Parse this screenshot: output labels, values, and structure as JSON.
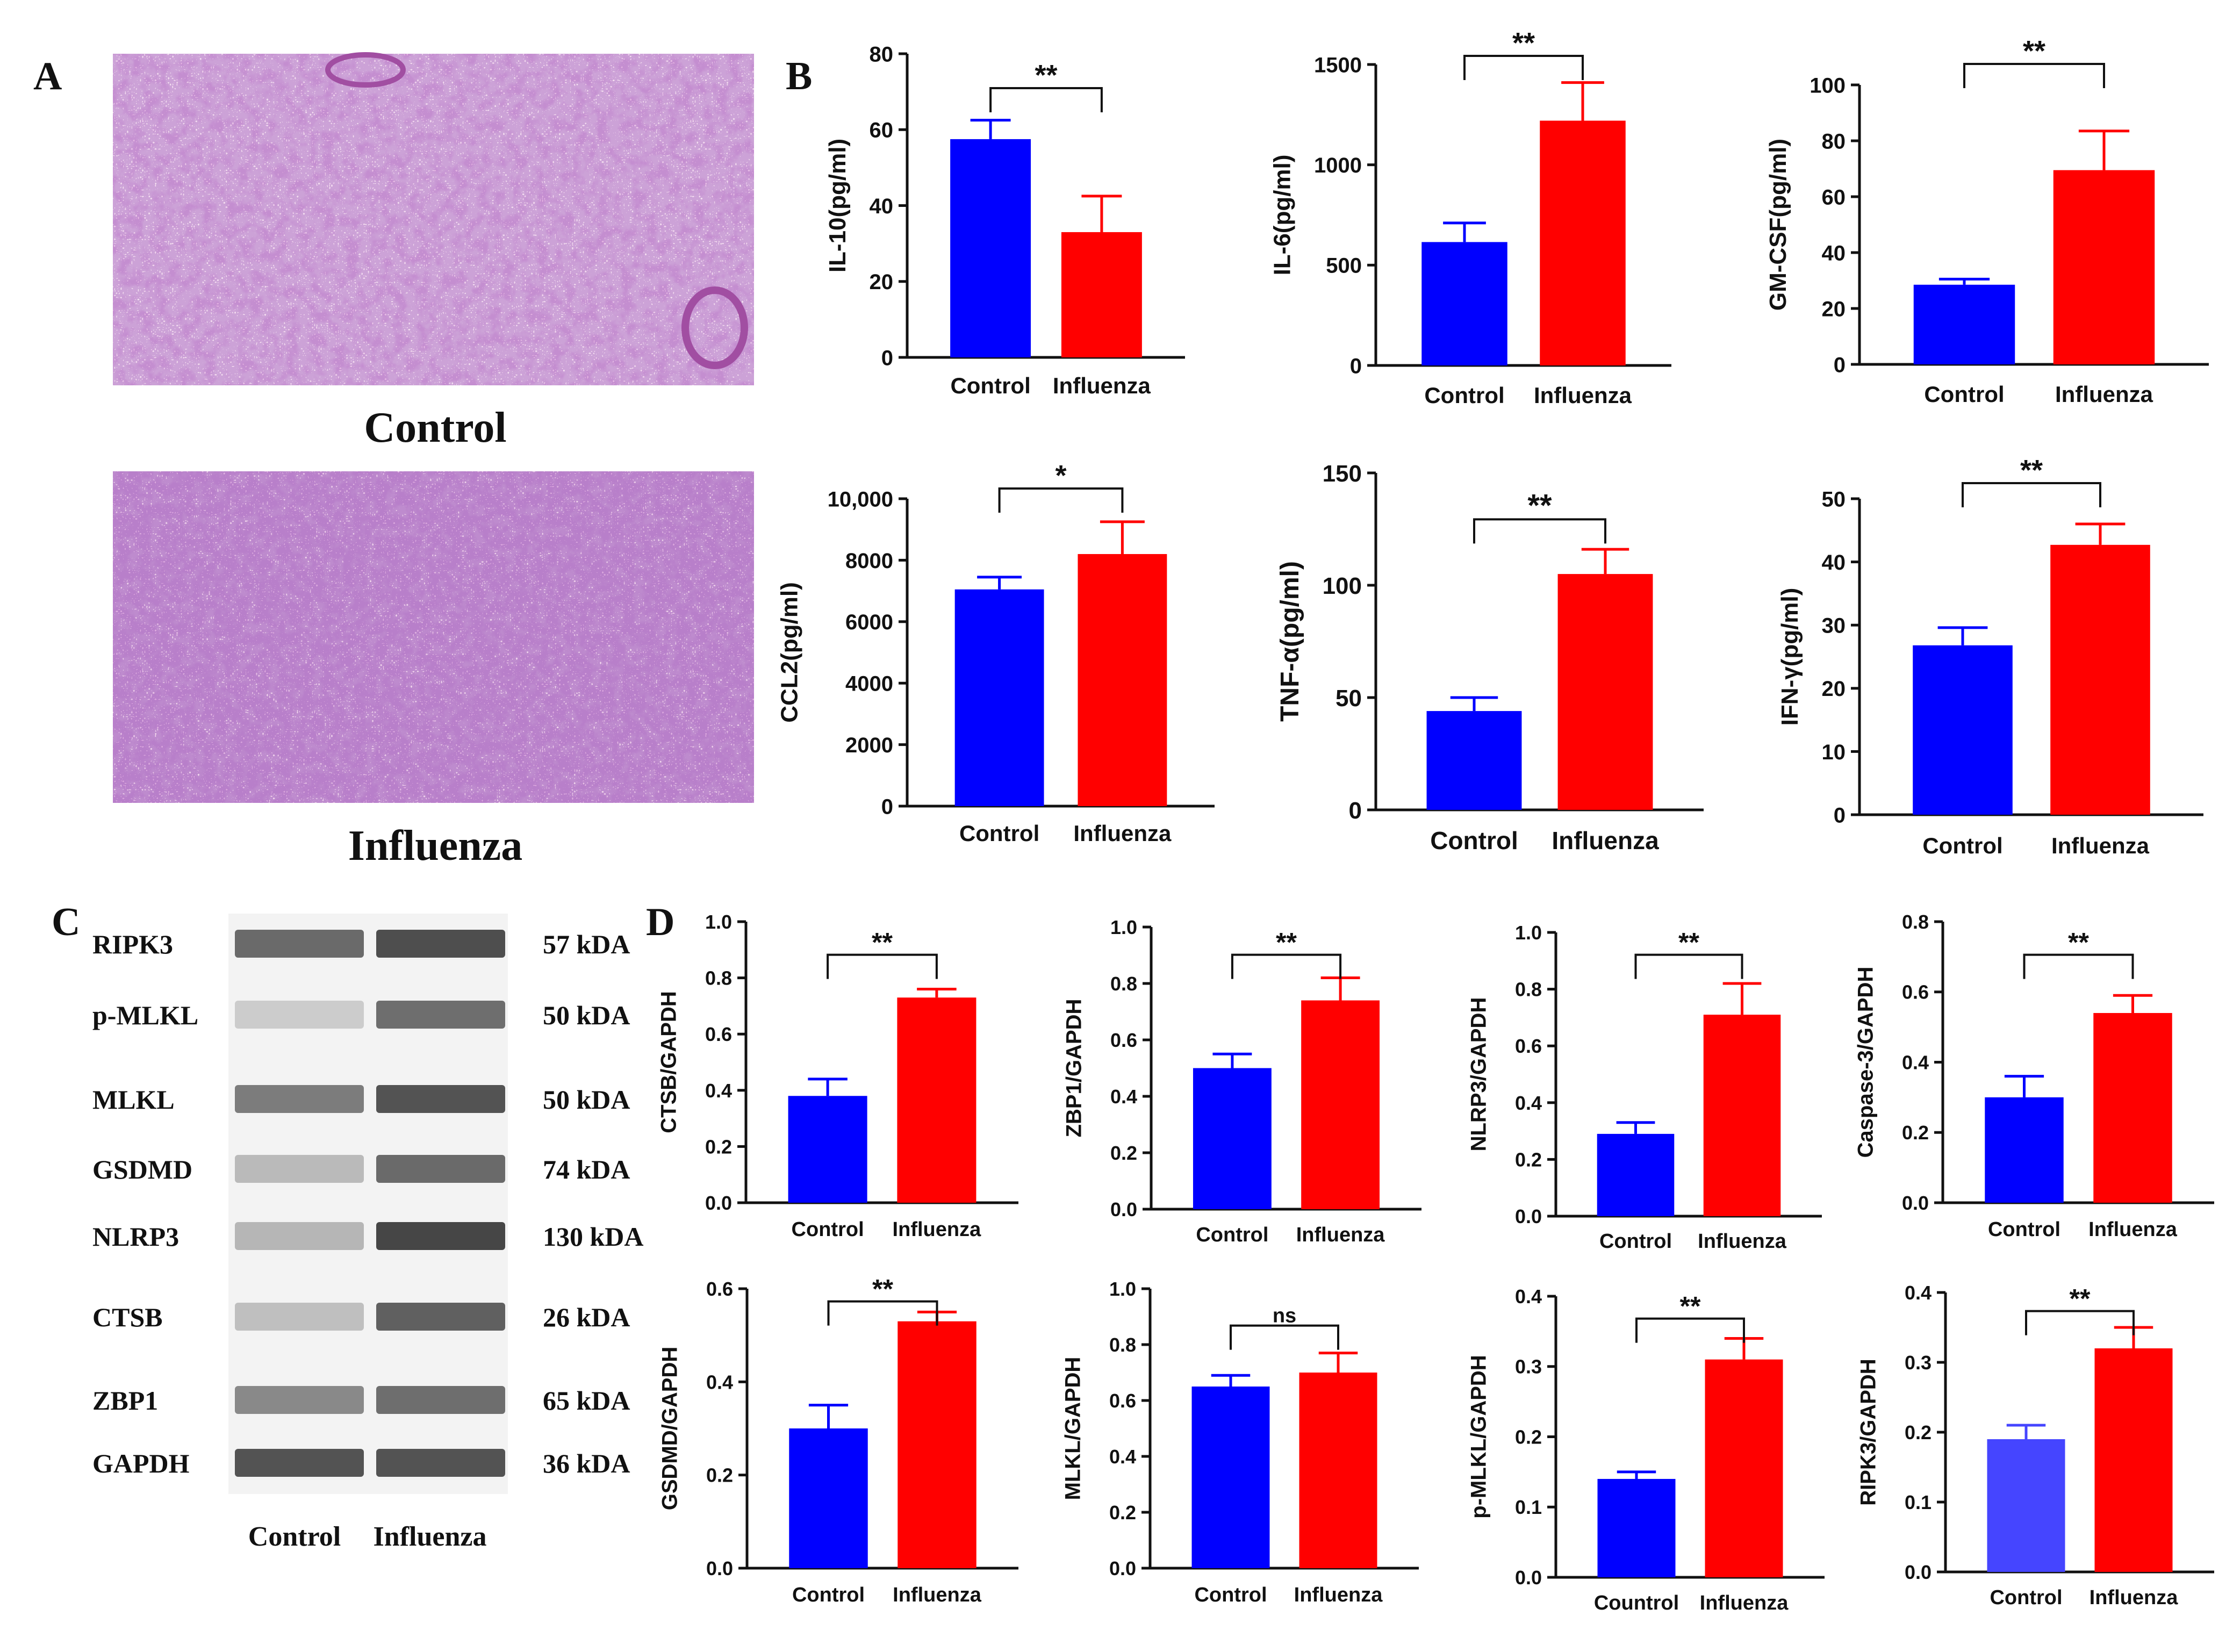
{
  "panels": {
    "a": "A",
    "b": "B",
    "c": "C",
    "d": "D"
  },
  "histology": {
    "control_label": "Control",
    "influenza_label": "Influenza",
    "colors": {
      "background": "#f3dcef",
      "tissue": "#c36fc0",
      "nuclei": "#6a2c8c"
    }
  },
  "blot": {
    "rows": [
      {
        "protein": "RIPK3",
        "size": "57 kDA",
        "control": 0.72,
        "influenza": 0.88
      },
      {
        "protein": "p-MLKL",
        "size": "50 kDA",
        "control": 0.18,
        "influenza": 0.7
      },
      {
        "protein": "MLKL",
        "size": "50 kDA",
        "control": 0.62,
        "influenza": 0.85
      },
      {
        "protein": "GSDMD",
        "size": "74 kDA",
        "control": 0.28,
        "influenza": 0.72
      },
      {
        "protein": "NLRP3",
        "size": "130 kDA",
        "control": 0.3,
        "influenza": 0.92
      },
      {
        "protein": "CTSB",
        "size": "26 kDA",
        "control": 0.25,
        "influenza": 0.78
      },
      {
        "protein": "ZBP1",
        "size": "65 kDA",
        "control": 0.55,
        "influenza": 0.7
      },
      {
        "protein": "GAPDH",
        "size": "36 kDA",
        "control": 0.85,
        "influenza": 0.85
      }
    ],
    "lanes": [
      "Control",
      "Influenza"
    ]
  },
  "colors": {
    "control": "#0000ff",
    "influenza": "#ff0000",
    "ripk3_control": "#4545ff"
  },
  "chart_data": [
    {
      "id": "il10",
      "panel": "B",
      "type": "bar",
      "ylabel": "IL-10(pg/ml)",
      "categories": [
        "Control",
        "Influenza"
      ],
      "values": [
        57.5,
        33
      ],
      "errors": [
        5,
        9.5
      ],
      "ylim": [
        0,
        80
      ],
      "yticks": [
        "0",
        "20",
        "40",
        "60",
        "80"
      ],
      "sig": "**"
    },
    {
      "id": "il6",
      "panel": "B",
      "type": "bar",
      "ylabel": "IL-6(pg/ml)",
      "categories": [
        "Control",
        "Influenza"
      ],
      "values": [
        615,
        1220
      ],
      "errors": [
        95,
        190
      ],
      "ylim": [
        0,
        1500
      ],
      "yticks": [
        "0",
        "500",
        "1000",
        "1500"
      ],
      "sig": "**"
    },
    {
      "id": "gmcsf",
      "panel": "B",
      "type": "bar",
      "ylabel": "GM-CSF(pg/ml)",
      "categories": [
        "Control",
        "Influenza"
      ],
      "values": [
        28.5,
        69.5
      ],
      "errors": [
        2,
        14
      ],
      "ylim": [
        0,
        100
      ],
      "yticks": [
        "0",
        "20",
        "40",
        "60",
        "80",
        "100"
      ],
      "sig": "**"
    },
    {
      "id": "ccl2",
      "panel": "B",
      "type": "bar",
      "ylabel": "CCL2(pg/ml)",
      "categories": [
        "Control",
        "Influenza"
      ],
      "values": [
        7050,
        8200
      ],
      "errors": [
        400,
        1050
      ],
      "ylim": [
        0,
        10000
      ],
      "yticks": [
        "0",
        "2000",
        "4000",
        "6000",
        "8000",
        "10,000"
      ],
      "sig": "*"
    },
    {
      "id": "tnfa",
      "panel": "B",
      "type": "bar",
      "ylabel": "TNF-α(pg/ml)",
      "categories": [
        "Control",
        "Influenza"
      ],
      "values": [
        44,
        105
      ],
      "errors": [
        6,
        11
      ],
      "ylim": [
        0,
        150
      ],
      "yticks": [
        "0",
        "50",
        "100",
        "150"
      ],
      "sig": "**"
    },
    {
      "id": "ifng",
      "panel": "B",
      "type": "bar",
      "ylabel": "IFN-γ(pg/ml)",
      "categories": [
        "Control",
        "Influenza"
      ],
      "values": [
        26.8,
        42.7
      ],
      "errors": [
        2.8,
        3.3
      ],
      "ylim": [
        0,
        50
      ],
      "yticks": [
        "0",
        "10",
        "20",
        "30",
        "40",
        "50"
      ],
      "sig": "**"
    },
    {
      "id": "ctsb",
      "panel": "D",
      "type": "bar",
      "ylabel": "CTSB/GAPDH",
      "categories": [
        "Control",
        "Influenza"
      ],
      "values": [
        0.38,
        0.73
      ],
      "errors": [
        0.06,
        0.03
      ],
      "ylim": [
        0,
        1.0
      ],
      "yticks": [
        "0.0",
        "0.2",
        "0.4",
        "0.6",
        "0.8",
        "1.0"
      ],
      "sig": "**"
    },
    {
      "id": "zbp1",
      "panel": "D",
      "type": "bar",
      "ylabel": "ZBP1/GAPDH",
      "categories": [
        "Control",
        "Influenza"
      ],
      "values": [
        0.5,
        0.74
      ],
      "errors": [
        0.05,
        0.08
      ],
      "ylim": [
        0,
        1.0
      ],
      "yticks": [
        "0.0",
        "0.2",
        "0.4",
        "0.6",
        "0.8",
        "1.0"
      ],
      "sig": "**"
    },
    {
      "id": "nlrp3",
      "panel": "D",
      "type": "bar",
      "ylabel": "NLRP3/GAPDH",
      "categories": [
        "Control",
        "Influenza"
      ],
      "values": [
        0.29,
        0.71
      ],
      "errors": [
        0.04,
        0.11
      ],
      "ylim": [
        0,
        1.0
      ],
      "yticks": [
        "0.0",
        "0.2",
        "0.4",
        "0.6",
        "0.8",
        "1.0"
      ],
      "sig": "**"
    },
    {
      "id": "casp3",
      "panel": "D",
      "type": "bar",
      "ylabel": "Caspase-3/GAPDH",
      "categories": [
        "Control",
        "Influenza"
      ],
      "values": [
        0.3,
        0.54
      ],
      "errors": [
        0.06,
        0.05
      ],
      "ylim": [
        0,
        0.8
      ],
      "yticks": [
        "0.0",
        "0.2",
        "0.4",
        "0.6",
        "0.8"
      ],
      "sig": "**"
    },
    {
      "id": "gsdmd",
      "panel": "D",
      "type": "bar",
      "ylabel": "GSDMD/GAPDH",
      "categories": [
        "Control",
        "Influenza"
      ],
      "values": [
        0.3,
        0.53
      ],
      "errors": [
        0.05,
        0.02
      ],
      "ylim": [
        0,
        0.6
      ],
      "yticks": [
        "0.0",
        "0.2",
        "0.4",
        "0.6"
      ],
      "sig": "**"
    },
    {
      "id": "mlkl",
      "panel": "D",
      "type": "bar",
      "ylabel": "MLKL/GAPDH",
      "categories": [
        "Control",
        "Influenza"
      ],
      "values": [
        0.65,
        0.7
      ],
      "errors": [
        0.04,
        0.07
      ],
      "ylim": [
        0,
        1.0
      ],
      "yticks": [
        "0.0",
        "0.2",
        "0.4",
        "0.6",
        "0.8",
        "1.0"
      ],
      "sig": "ns"
    },
    {
      "id": "pmlkl",
      "panel": "D",
      "type": "bar",
      "ylabel": "p-MLKL/GAPDH",
      "categories": [
        "Countrol",
        "Influenza"
      ],
      "values": [
        0.14,
        0.31
      ],
      "errors": [
        0.01,
        0.03
      ],
      "ylim": [
        0,
        0.4
      ],
      "yticks": [
        "0.0",
        "0.1",
        "0.2",
        "0.3",
        "0.4"
      ],
      "sig": "**"
    },
    {
      "id": "ripk3",
      "panel": "D",
      "type": "bar",
      "ylabel": "RIPK3/GAPDH",
      "categories": [
        "Control",
        "Influenza"
      ],
      "values": [
        0.19,
        0.32
      ],
      "errors": [
        0.02,
        0.03
      ],
      "ylim": [
        0,
        0.4
      ],
      "yticks": [
        "0.0",
        "0.1",
        "0.2",
        "0.3",
        "0.4"
      ],
      "sig": "**"
    }
  ]
}
